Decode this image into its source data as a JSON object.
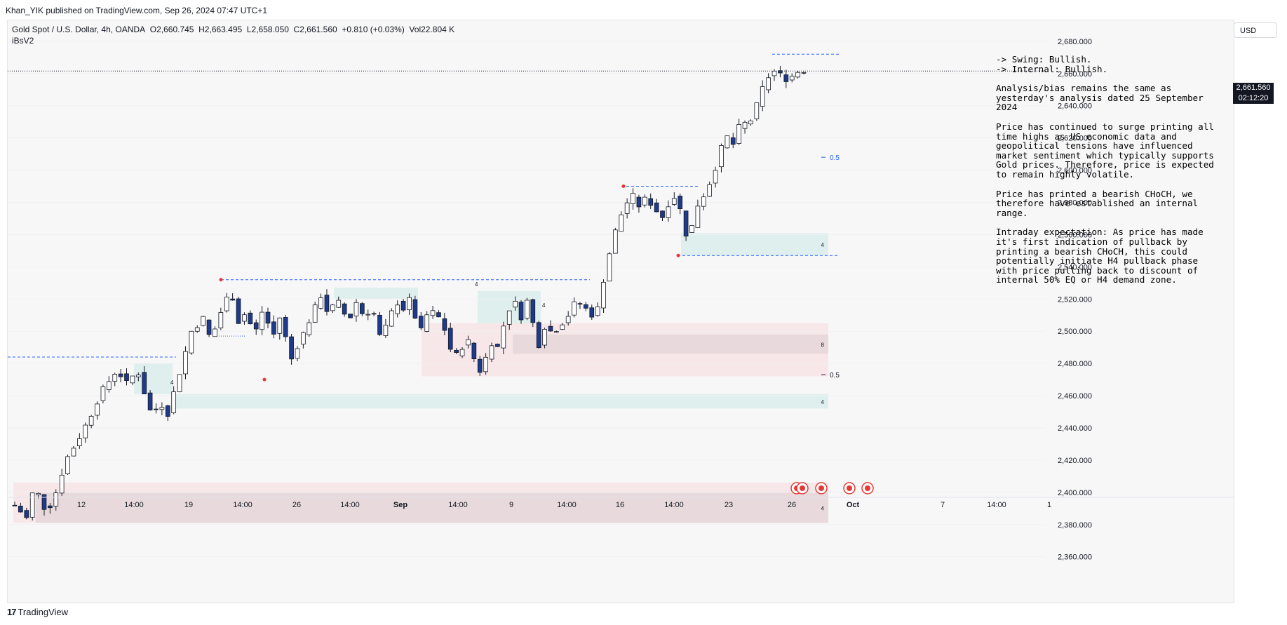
{
  "header": {
    "published": "Khan_YIK published on TradingView.com, Sep 26, 2024 07:47 UTC+1"
  },
  "legend": {
    "symbol": "Gold Spot / U.S. Dollar, 4h, OANDA",
    "open": "O2,660.745",
    "high": "H2,663.495",
    "low": "L2,658.050",
    "close": "C2,661.560",
    "change": "+0.810 (+0.03%)",
    "volume": "Vol22.804 K",
    "indicator": "iBsV2"
  },
  "currency_button": "USD",
  "price_tag": {
    "price": "2,661.560",
    "countdown": "02:12:20"
  },
  "notes": {
    "swing": "-> Swing:  Bullish.",
    "internal": "-> Internal:  Bullish.",
    "p1": "Analysis/bias remains the same as yesterday's analysis dated 25 September 2024",
    "p2": "Price has continued to surge printing all time highs as US economic data and geopolitical tensions have influenced market sentiment which typically supports Gold prices. Therefore, price is expected to remain highly volatile.",
    "p3": "Price has printed a bearish CHoCH, we therefore have established an internal range.",
    "p4": "Intraday expectation: As price has made it's first indication of pullback by printing a bearish CHoCH, this could potentially initiate H4 pullback phase with price pulling back to discount of internal 50% EQ or H4 demand zone."
  },
  "footer": {
    "brand": "TradingView",
    "mark": "17"
  },
  "chart_data": {
    "type": "candlestick",
    "timeframe": "4h",
    "y_axis": {
      "ticks": [
        2680,
        2660,
        2640,
        2620,
        2600,
        2580,
        2560,
        2540,
        2520,
        2500,
        2480,
        2460,
        2440,
        2420,
        2400,
        2380,
        2360
      ],
      "tick_labels": [
        "2,680.000",
        "2,660.000",
        "2,640.000",
        "2,620.000",
        "2,600.000",
        "2,580.000",
        "2,560.000",
        "2,540.000",
        "2,520.000",
        "2,500.000",
        "2,480.000",
        "2,460.000",
        "2,440.000",
        "2,420.000",
        "2,400.000",
        "2,380.000",
        "2,360.000"
      ],
      "range": [
        2349,
        2693
      ]
    },
    "x_axis": {
      "tick_labels": [
        "12",
        "14:00",
        "19",
        "14:00",
        "26",
        "14:00",
        "Sep",
        "14:00",
        "9",
        "14:00",
        "16",
        "14:00",
        "23",
        "26",
        "Oct",
        "7",
        "14:00",
        "1"
      ]
    },
    "candles_path": [
      [
        0,
        2392
      ],
      [
        6,
        2384
      ],
      [
        10,
        2404
      ],
      [
        16,
        2388
      ],
      [
        20,
        2396
      ],
      [
        26,
        2420
      ],
      [
        32,
        2432
      ],
      [
        38,
        2446
      ],
      [
        44,
        2462
      ],
      [
        52,
        2476
      ],
      [
        58,
        2466
      ],
      [
        62,
        2478
      ],
      [
        66,
        2462
      ],
      [
        70,
        2447
      ],
      [
        74,
        2456
      ],
      [
        78,
        2449
      ],
      [
        82,
        2466
      ],
      [
        90,
        2500
      ],
      [
        96,
        2508
      ],
      [
        100,
        2494
      ],
      [
        104,
        2509
      ],
      [
        110,
        2526
      ],
      [
        114,
        2506
      ],
      [
        118,
        2512
      ],
      [
        122,
        2497
      ],
      [
        126,
        2512
      ],
      [
        132,
        2498
      ],
      [
        136,
        2512
      ],
      [
        140,
        2480
      ],
      [
        144,
        2491
      ],
      [
        148,
        2501
      ],
      [
        152,
        2512
      ],
      [
        156,
        2522
      ],
      [
        160,
        2510
      ],
      [
        164,
        2520
      ],
      [
        170,
        2506
      ],
      [
        174,
        2518
      ],
      [
        178,
        2509
      ],
      [
        182,
        2515
      ],
      [
        186,
        2497
      ],
      [
        190,
        2504
      ],
      [
        194,
        2519
      ],
      [
        198,
        2514
      ],
      [
        202,
        2521
      ],
      [
        206,
        2497
      ],
      [
        210,
        2510
      ],
      [
        214,
        2512
      ],
      [
        218,
        2505
      ],
      [
        222,
        2489
      ],
      [
        226,
        2484
      ],
      [
        230,
        2497
      ],
      [
        234,
        2483
      ],
      [
        238,
        2473
      ],
      [
        242,
        2494
      ],
      [
        246,
        2490
      ],
      [
        250,
        2508
      ],
      [
        254,
        2520
      ],
      [
        258,
        2509
      ],
      [
        262,
        2522
      ],
      [
        266,
        2488
      ],
      [
        270,
        2503
      ],
      [
        274,
        2499
      ],
      [
        278,
        2504
      ],
      [
        282,
        2510
      ],
      [
        286,
        2519
      ],
      [
        290,
        2515
      ],
      [
        296,
        2508
      ],
      [
        300,
        2532
      ],
      [
        304,
        2554
      ],
      [
        308,
        2570
      ],
      [
        312,
        2580
      ],
      [
        316,
        2585
      ],
      [
        318,
        2578
      ],
      [
        322,
        2583
      ],
      [
        326,
        2576
      ],
      [
        330,
        2571
      ],
      [
        334,
        2582
      ],
      [
        338,
        2585
      ],
      [
        340,
        2566
      ],
      [
        344,
        2555
      ],
      [
        346,
        2575
      ],
      [
        350,
        2582
      ],
      [
        354,
        2592
      ],
      [
        358,
        2605
      ],
      [
        362,
        2622
      ],
      [
        366,
        2616
      ],
      [
        370,
        2630
      ],
      [
        374,
        2628
      ],
      [
        378,
        2640
      ],
      [
        382,
        2654
      ],
      [
        386,
        2662
      ],
      [
        390,
        2659
      ],
      [
        394,
        2656
      ],
      [
        398,
        2661
      ],
      [
        402,
        2662
      ]
    ],
    "last_index": 402,
    "key_levels": {
      "current_price": 2661.56,
      "swing_high_red_dot": 2532,
      "swing_low_red_dot": 2470,
      "internal_high_red_dot": 2590,
      "internal_low_red_dot": 2547,
      "eq_label": "0.5"
    },
    "zones": [
      {
        "kind": "demand",
        "y1": 2547,
        "y2": 2561,
        "label": "4"
      },
      {
        "kind": "demand",
        "y1": 2452,
        "y2": 2461,
        "label": "4"
      },
      {
        "kind": "supply",
        "y1": 2472,
        "y2": 2505,
        "label": ""
      },
      {
        "kind": "gray",
        "y1": 2486,
        "y2": 2498,
        "label": "8"
      },
      {
        "kind": "supply",
        "y1": 2381,
        "y2": 2406,
        "label": ""
      },
      {
        "kind": "gray",
        "y1": 2381,
        "y2": 2400,
        "label": "4"
      }
    ]
  }
}
